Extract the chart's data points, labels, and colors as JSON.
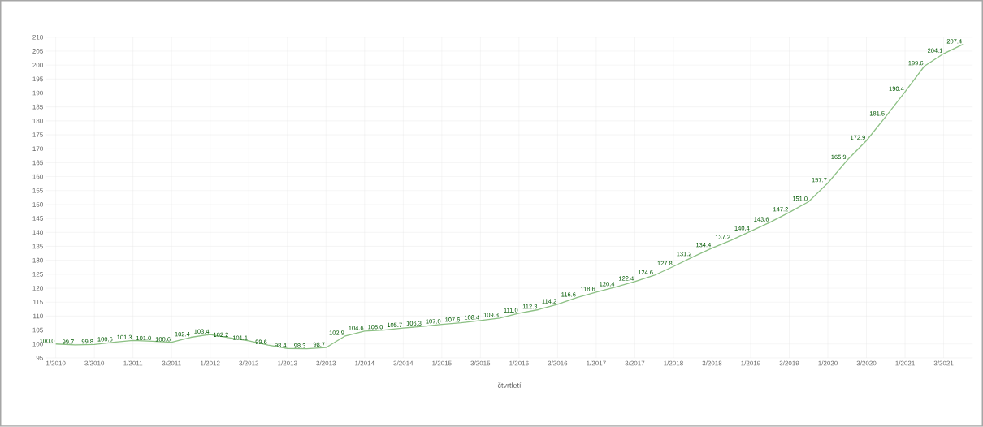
{
  "chart_data": {
    "type": "line",
    "xlabel": "čtvrtletí",
    "categories": [
      "1/2010",
      null,
      "3/2010",
      null,
      "1/2011",
      null,
      "3/2011",
      null,
      "1/2012",
      null,
      "3/2012",
      null,
      "1/2013",
      null,
      "3/2013",
      null,
      "1/2014",
      null,
      "3/2014",
      null,
      "1/2015",
      null,
      "3/2015",
      null,
      "1/2016",
      null,
      "3/2016",
      null,
      "1/2017",
      null,
      "3/2017",
      null,
      "1/2018",
      null,
      "3/2018",
      null,
      "1/2019",
      null,
      "3/2019",
      null,
      "1/2020",
      null,
      "3/2020",
      null,
      "1/2021",
      null,
      "3/2021",
      null
    ],
    "series": [
      {
        "color": "#8cc084",
        "values": [
          100.0,
          99.7,
          99.8,
          100.6,
          101.3,
          101.0,
          100.6,
          102.4,
          103.4,
          102.2,
          101.1,
          99.6,
          98.4,
          98.3,
          98.7,
          102.9,
          104.6,
          105.0,
          105.7,
          106.3,
          107.0,
          107.6,
          108.4,
          109.3,
          111.0,
          112.3,
          114.2,
          116.6,
          118.6,
          120.4,
          122.4,
          124.6,
          127.8,
          131.2,
          134.4,
          137.2,
          140.4,
          143.6,
          147.2,
          151.0,
          157.7,
          165.9,
          172.9,
          181.5,
          190.4,
          199.6,
          204.1,
          207.4
        ],
        "value_labels": [
          "100.0",
          "99.7",
          "99.8",
          "100.6",
          "101.3",
          "101.0",
          "100.6",
          "102.4",
          "103.4",
          "102.2",
          "101.1",
          "99.6",
          "98.4",
          "98.3",
          "98.7",
          "102.9",
          "104.6",
          "105.0",
          "105.7",
          "106.3",
          "107.0",
          "107.6",
          "108.4",
          "109.3",
          "111.0",
          "112.3",
          "114.2",
          "116.6",
          "118.6",
          "120.4",
          "122.4",
          "124.6",
          "127.8",
          "131.2",
          "134.4",
          "137.2",
          "140.4",
          "143.6",
          "147.2",
          "151.0",
          "157.7",
          "165.9",
          "172.9",
          "181.5",
          "190.4",
          "199.6",
          "204.1",
          "207.4"
        ]
      }
    ],
    "ylim": [
      95,
      210
    ],
    "yticks": [
      95,
      100,
      105,
      110,
      115,
      120,
      125,
      130,
      135,
      140,
      145,
      150,
      155,
      160,
      165,
      170,
      175,
      180,
      185,
      190,
      195,
      200,
      205,
      210
    ],
    "grid": true,
    "marker": "none",
    "line_style": "solid"
  }
}
